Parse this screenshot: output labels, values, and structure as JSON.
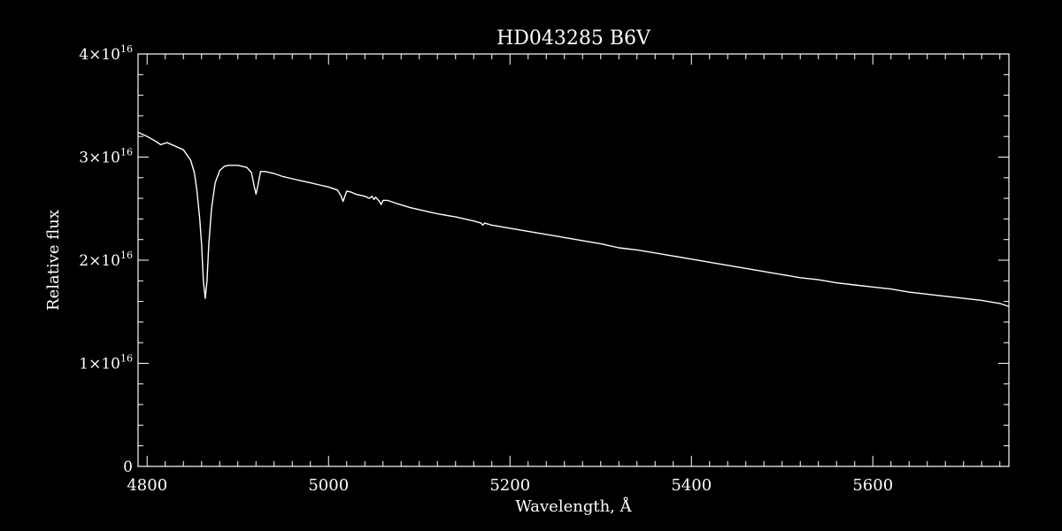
{
  "chart_data": {
    "type": "line",
    "title": "HD043285   B6V",
    "xlabel": "Wavelength, Å",
    "ylabel": "Relative flux",
    "xlim": [
      4790,
      5750
    ],
    "ylim": [
      0,
      4e+16
    ],
    "x_ticks": [
      {
        "value": 4800,
        "label": "4800"
      },
      {
        "value": 5000,
        "label": "5000"
      },
      {
        "value": 5200,
        "label": "5200"
      },
      {
        "value": 5400,
        "label": "5400"
      },
      {
        "value": 5600,
        "label": "5600"
      }
    ],
    "y_ticks": [
      {
        "value": 0,
        "mant": "0",
        "exp": ""
      },
      {
        "value": 1e+16,
        "mant": "1×10",
        "exp": "16"
      },
      {
        "value": 2e+16,
        "mant": "2×10",
        "exp": "16"
      },
      {
        "value": 3e+16,
        "mant": "3×10",
        "exp": "16"
      },
      {
        "value": 4e+16,
        "mant": "4×10",
        "exp": "16"
      }
    ],
    "grid": false,
    "colors": {
      "background": "#000000",
      "foreground": "#ffffff"
    },
    "series": [
      {
        "x": [
          4790,
          4800,
          4810,
          4815,
          4818,
          4822,
          4830,
          4840,
          4848,
          4852,
          4855,
          4858,
          4860,
          4862,
          4864,
          4866,
          4868,
          4871,
          4875,
          4880,
          4885,
          4890,
          4900,
          4910,
          4915,
          4918,
          4920,
          4922,
          4925,
          4930,
          4940,
          4950,
          4960,
          4970,
          4980,
          4990,
          5000,
          5010,
          5014,
          5016,
          5018,
          5020,
          5025,
          5030,
          5040,
          5045,
          5048,
          5050,
          5052,
          5056,
          5058,
          5060,
          5065,
          5075,
          5090,
          5100,
          5120,
          5140,
          5160,
          5168,
          5170,
          5172,
          5180,
          5200,
          5220,
          5240,
          5260,
          5280,
          5300,
          5320,
          5340,
          5360,
          5380,
          5400,
          5420,
          5440,
          5460,
          5480,
          5500,
          5520,
          5540,
          5560,
          5580,
          5600,
          5620,
          5640,
          5660,
          5680,
          5700,
          5720,
          5740,
          5750
        ],
        "y": [
          3.24e+16,
          3.2e+16,
          3.15e+16,
          3.12e+16,
          3.13e+16,
          3.14e+16,
          3.11e+16,
          3.07e+16,
          2.97e+16,
          2.85e+16,
          2.67e+16,
          2.4e+16,
          2.15e+16,
          1.8e+16,
          1.63e+16,
          1.8e+16,
          2.15e+16,
          2.5e+16,
          2.75e+16,
          2.87e+16,
          2.91e+16,
          2.92e+16,
          2.92e+16,
          2.9e+16,
          2.85e+16,
          2.72e+16,
          2.64e+16,
          2.72e+16,
          2.86e+16,
          2.86e+16,
          2.84e+16,
          2.81e+16,
          2.79e+16,
          2.77e+16,
          2.75e+16,
          2.73e+16,
          2.71e+16,
          2.68e+16,
          2.62e+16,
          2.57e+16,
          2.62e+16,
          2.67e+16,
          2.66e+16,
          2.64e+16,
          2.62e+16,
          2.6e+16,
          2.62e+16,
          2.59e+16,
          2.61e+16,
          2.57e+16,
          2.54e+16,
          2.58e+16,
          2.58e+16,
          2.55e+16,
          2.51e+16,
          2.49e+16,
          2.45e+16,
          2.42e+16,
          2.38e+16,
          2.36e+16,
          2.34e+16,
          2.36e+16,
          2.34e+16,
          2.31e+16,
          2.28e+16,
          2.25e+16,
          2.22e+16,
          2.19e+16,
          2.16e+16,
          2.12e+16,
          2.1e+16,
          2.07e+16,
          2.04e+16,
          2.01e+16,
          1.98e+16,
          1.95e+16,
          1.92e+16,
          1.89e+16,
          1.86e+16,
          1.83e+16,
          1.81e+16,
          1.78e+16,
          1.76e+16,
          1.74e+16,
          1.72e+16,
          1.69e+16,
          1.67e+16,
          1.65e+16,
          1.63e+16,
          1.61e+16,
          1.58e+16,
          1.55e+16
        ]
      }
    ]
  }
}
